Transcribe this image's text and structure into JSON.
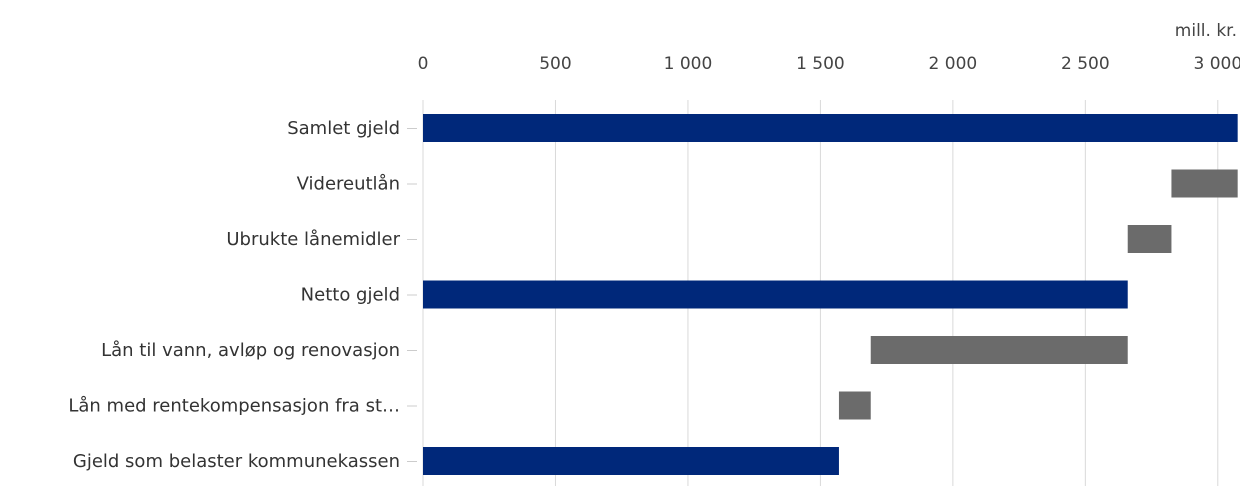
{
  "chart_data": {
    "type": "bar",
    "orientation": "horizontal",
    "subtype": "waterfall",
    "unit_label": "mill. kr.",
    "x_axis": {
      "position": "top",
      "range": [
        0,
        3080
      ],
      "ticks": [
        0,
        500,
        1000,
        1500,
        2000,
        2500,
        3000
      ],
      "tick_labels": [
        "0",
        "500",
        "1 000",
        "1 500",
        "2 000",
        "2 500",
        "3 000"
      ]
    },
    "grid": true,
    "legend": "none",
    "colors": {
      "total": "#00287a",
      "delta": "#6b6b6b"
    },
    "categories": [
      "Samlet gjeld",
      "Videreutlån",
      "Ubrukte lånemidler",
      "Netto gjeld",
      "Lån til vann, avløp og renovasjon",
      "Lån med rentekompensasjon fra st…",
      "Gjeld som belaster kommunekassen"
    ],
    "bars": [
      {
        "kind": "total",
        "start": 0,
        "end": 3075
      },
      {
        "kind": "delta",
        "start": 2825,
        "end": 3075
      },
      {
        "kind": "delta",
        "start": 2660,
        "end": 2825
      },
      {
        "kind": "total",
        "start": 0,
        "end": 2660
      },
      {
        "kind": "delta",
        "start": 1690,
        "end": 2660
      },
      {
        "kind": "delta",
        "start": 1570,
        "end": 1690
      },
      {
        "kind": "total",
        "start": 0,
        "end": 1570
      }
    ]
  }
}
